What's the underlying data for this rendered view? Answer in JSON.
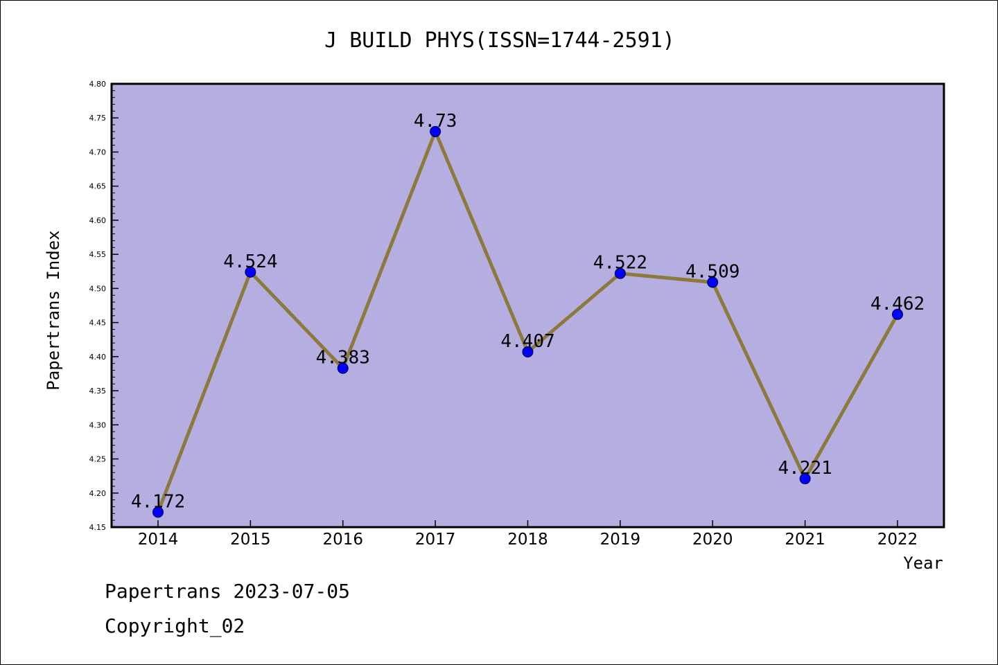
{
  "chart_data": {
    "type": "line",
    "title": "J BUILD PHYS(ISSN=1744-2591)",
    "xlabel": "Year",
    "ylabel": "Papertrans Index",
    "categories": [
      "2014",
      "2015",
      "2016",
      "2017",
      "2018",
      "2019",
      "2020",
      "2021",
      "2022"
    ],
    "series": [
      {
        "values": [
          4.172,
          4.524,
          4.383,
          4.73,
          4.407,
          4.522,
          4.509,
          4.221,
          4.462
        ],
        "labels": [
          "4.172",
          "4.524",
          "4.383",
          "4.73",
          "4.407",
          "4.522",
          "4.509",
          "4.221",
          "4.462"
        ]
      }
    ],
    "ylim": [
      4.15,
      4.8
    ],
    "yticks": [
      "4.15",
      "4.20",
      "4.25",
      "4.30",
      "4.35",
      "4.40",
      "4.45",
      "4.50",
      "4.55",
      "4.60",
      "4.65",
      "4.70",
      "4.75",
      "4.80"
    ],
    "grid": false,
    "legend": "none"
  },
  "colors": {
    "plot_background": "#b4aee1",
    "line": "#8c7a3c",
    "marker": "#0000ff",
    "frame": "#000000"
  },
  "footer": {
    "date_text": "Papertrans 2023-07-05",
    "copyright_text": "Copyright_02"
  }
}
